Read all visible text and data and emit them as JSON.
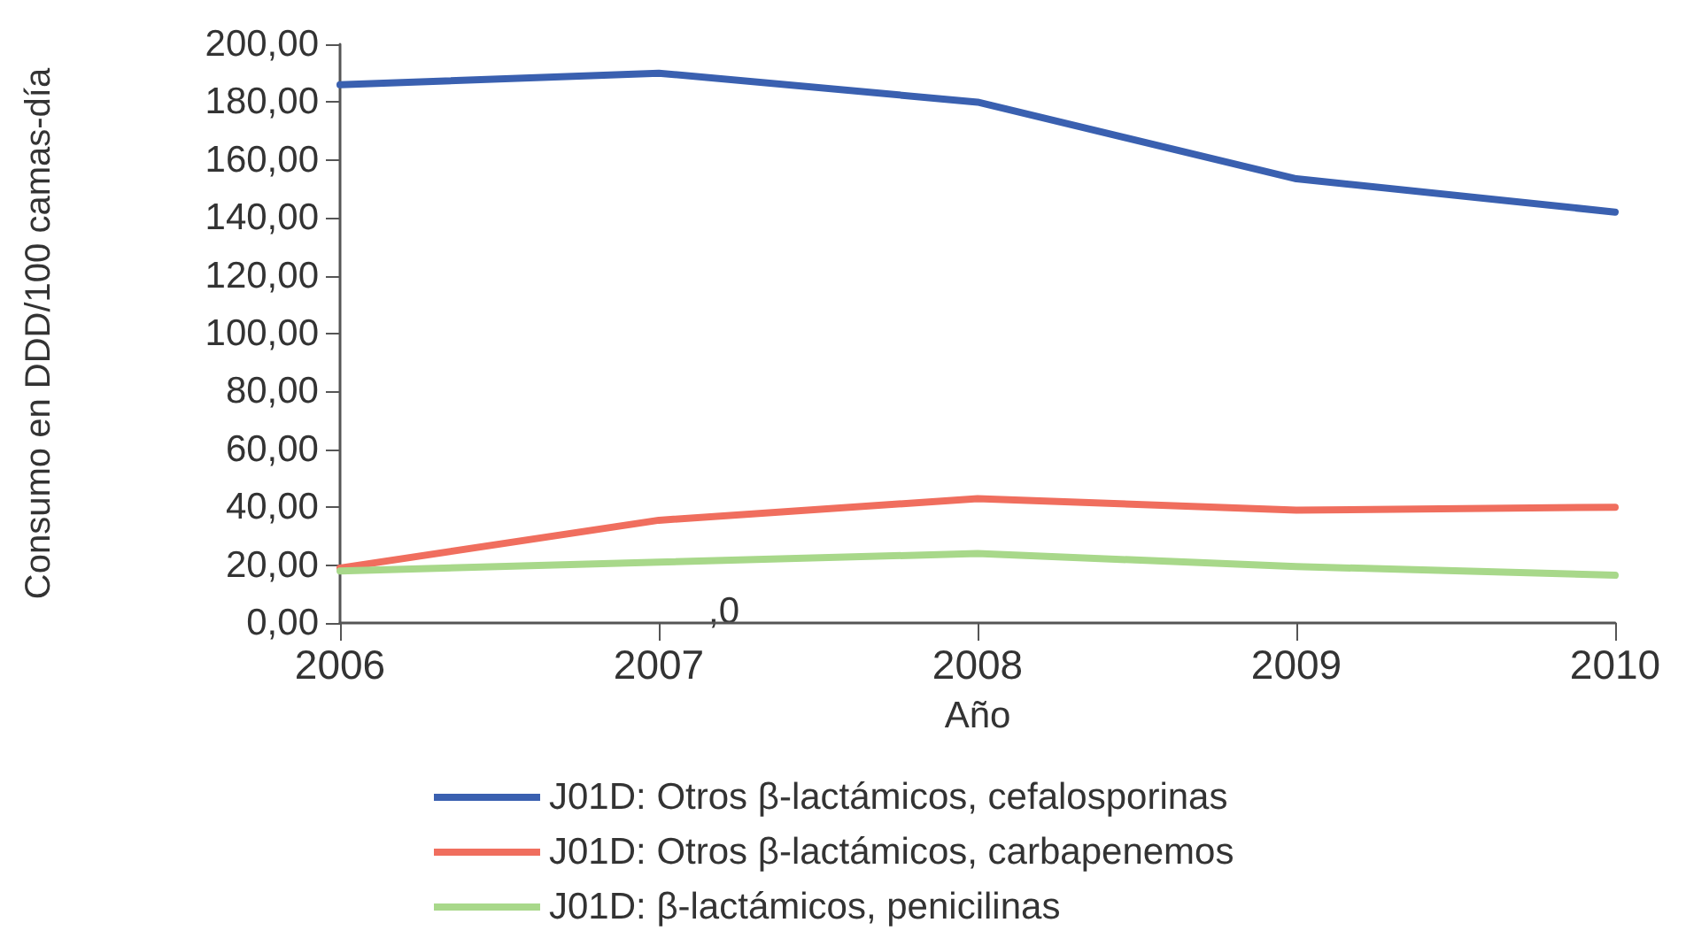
{
  "chart_data": {
    "type": "line",
    "xlabel": "Año",
    "ylabel": "Consumo en DDD/100 camas-día",
    "x": [
      2006,
      2007,
      2008,
      2009,
      2010
    ],
    "series": [
      {
        "name": "J01D: Otros β-lactámicos, cefalosporinas",
        "color": "#3a60b0",
        "values": [
          186,
          190,
          180,
          153.5,
          142
        ]
      },
      {
        "name": "J01D: Otros β-lactámicos, carbapenemos",
        "color": "#f06e5e",
        "values": [
          19,
          35.5,
          43,
          39,
          40
        ]
      },
      {
        "name": "J01D: β-lactámicos, penicilinas",
        "color": "#a8d88a",
        "values": [
          18,
          21,
          24,
          19.5,
          16.5
        ]
      }
    ],
    "xlim": [
      2006,
      2010
    ],
    "xticks": [
      2006,
      2007,
      2008,
      2009,
      2010
    ],
    "ylim": [
      0,
      200
    ],
    "yticks": [
      {
        "value": 0,
        "label": "0,00"
      },
      {
        "value": 20,
        "label": "20,00"
      },
      {
        "value": 40,
        "label": "40,00"
      },
      {
        "value": 60,
        "label": "60,00"
      },
      {
        "value": 80,
        "label": "80,00"
      },
      {
        "value": 100,
        "label": "100,00"
      },
      {
        "value": 120,
        "label": "120,00"
      },
      {
        "value": 140,
        "label": "140,00"
      },
      {
        "value": 160,
        "label": "160,00"
      },
      {
        "value": 180,
        "label": "180,00"
      },
      {
        "value": 200,
        "label": "200,00"
      }
    ],
    "annotations": [
      ",0"
    ],
    "grid": false,
    "legend": "bottom",
    "marker": "none",
    "line_style": "solid"
  }
}
